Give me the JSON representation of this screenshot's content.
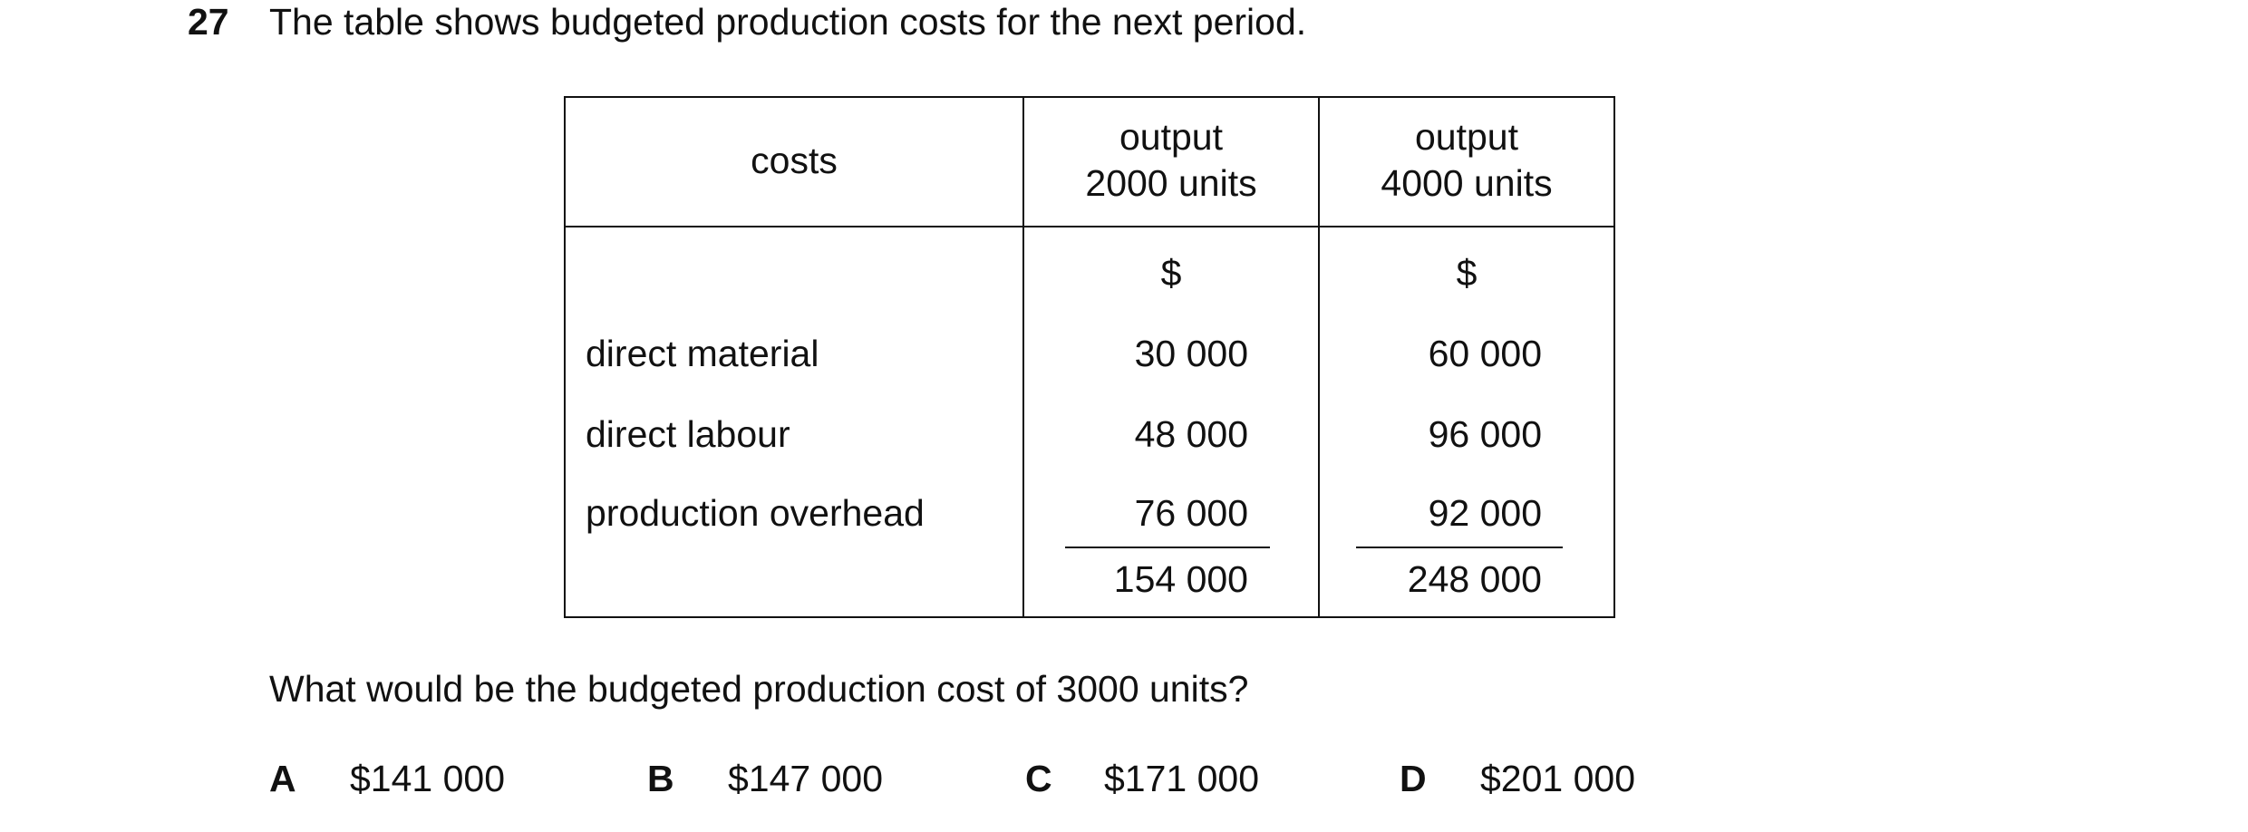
{
  "question": {
    "number": "27",
    "intro": "The table shows budgeted production costs for the next period.",
    "table": {
      "header": [
        "costs",
        [
          "output",
          "2000 units"
        ],
        [
          "output",
          "4000 units"
        ]
      ],
      "units": [
        "$",
        "$"
      ],
      "rows": [
        [
          "direct material",
          "30 000",
          "60 000"
        ],
        [
          "direct labour",
          "48 000",
          "96 000"
        ],
        [
          "production overhead",
          "76 000",
          "92 000"
        ]
      ],
      "totals": [
        "154 000",
        "248 000"
      ]
    },
    "prompt": "What would be the budgeted production cost of 3000 units?",
    "options": [
      {
        "letter": "A",
        "text": "$141 000"
      },
      {
        "letter": "B",
        "text": "$147 000"
      },
      {
        "letter": "C",
        "text": "$171 000"
      },
      {
        "letter": "D",
        "text": "$201 000"
      }
    ]
  }
}
